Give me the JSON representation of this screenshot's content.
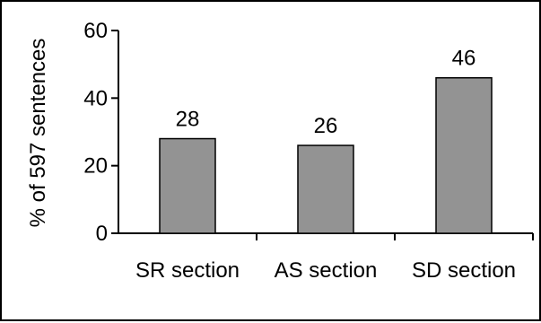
{
  "chart_data": {
    "type": "bar",
    "title": "",
    "xlabel": "",
    "ylabel": "% of 597 sentences",
    "categories": [
      "SR section",
      "AS section",
      "SD section"
    ],
    "values": [
      28,
      26,
      46
    ],
    "data_labels": [
      "28",
      "26",
      "46"
    ],
    "ylim": [
      0,
      60
    ],
    "yticks": [
      0,
      20,
      40,
      60
    ],
    "ytick_labels": [
      "0",
      "20",
      "40",
      "60"
    ],
    "grid": false,
    "legend": "none",
    "colors": {
      "bar_fill": "#939393",
      "bar_stroke": "#000000",
      "axis": "#000000"
    }
  }
}
